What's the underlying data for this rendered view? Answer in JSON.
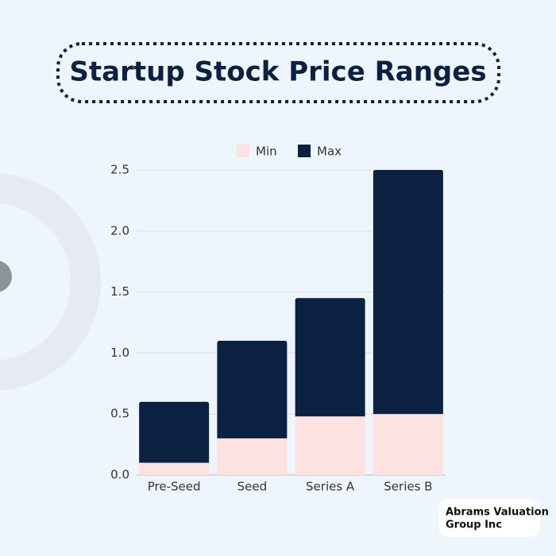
{
  "chart_data": {
    "type": "stacked_bar",
    "title": "Startup Stock Price Ranges",
    "categories": [
      "Pre-Seed",
      "Seed",
      "Series A",
      "Series B"
    ],
    "series": [
      {
        "name": "Min",
        "color": "#fde2df",
        "values": [
          0.1,
          0.3,
          0.48,
          0.5
        ]
      },
      {
        "name": "Max",
        "color": "#0b2142",
        "values": [
          0.5,
          0.8,
          0.97,
          2.0
        ]
      }
    ],
    "ylim": [
      0,
      2.5
    ],
    "yticks": [
      {
        "value": 0,
        "label": "0.0"
      },
      0.5,
      {
        "value": 1,
        "label": "1.0"
      },
      1.5,
      {
        "value": 2,
        "label": "2.0"
      },
      2.5
    ],
    "grid": true,
    "legend": "top"
  },
  "brand": {
    "lines": [
      "Abrams Valuation",
      "Group Inc"
    ]
  }
}
